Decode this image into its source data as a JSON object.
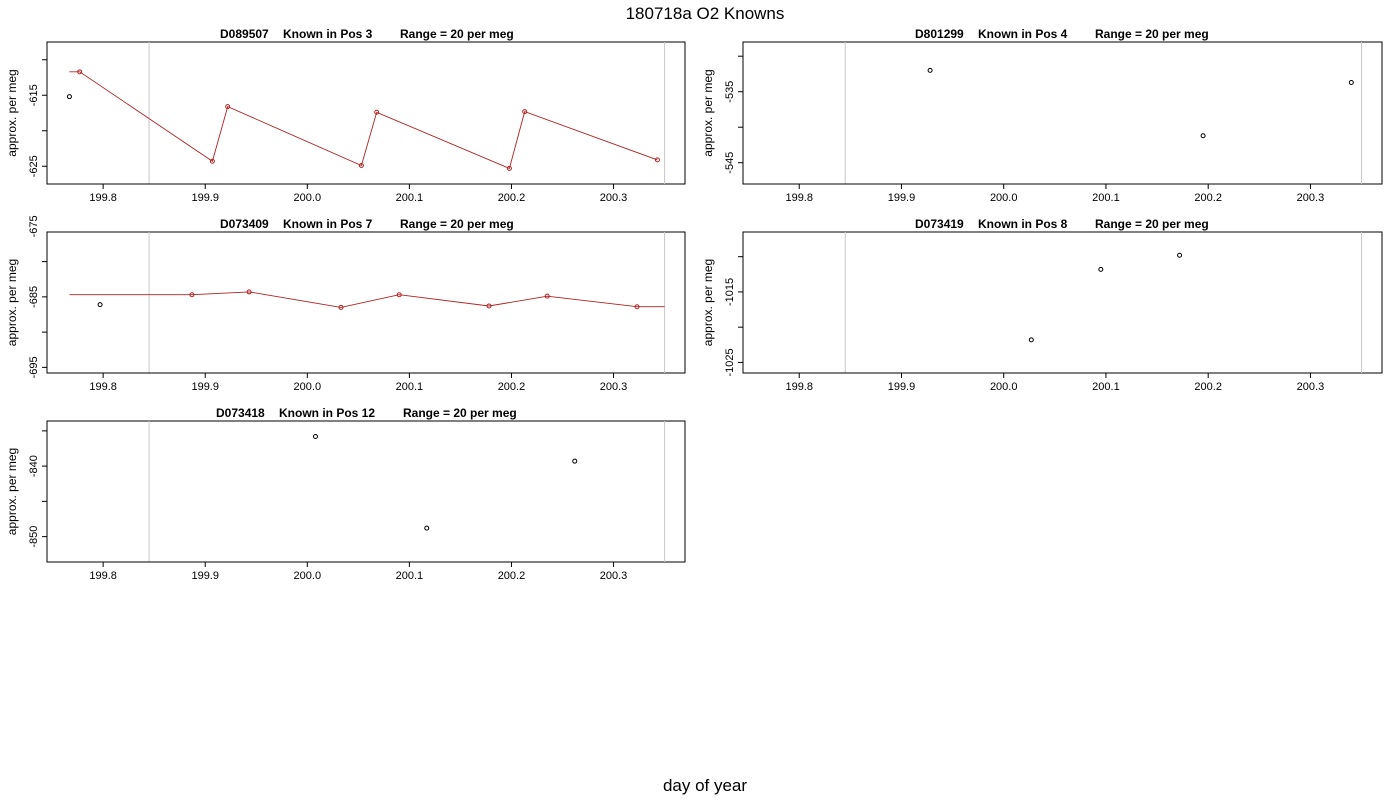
{
  "figure": {
    "title": "180718a   O2 Knowns",
    "xlabel": "day of year"
  },
  "chart_data": [
    {
      "type": "scatter",
      "title_parts": [
        "D089507",
        "Known in Pos 3",
        "Range = 20 per meg"
      ],
      "ylabel": "approx. per meg",
      "xlim": [
        199.745,
        200.37
      ],
      "ylim": [
        -627.5,
        -607.5
      ],
      "x_ticks": [
        "199.8",
        "199.9",
        "200.0",
        "200.1",
        "200.2",
        "200.3"
      ],
      "y_ticks": [
        "-615",
        "-625"
      ],
      "vlines": [
        199.845,
        200.35
      ],
      "fit_line": {
        "x": [
          199.767,
          199.777,
          199.907,
          199.922,
          200.053,
          200.068,
          200.198,
          200.213,
          200.343
        ],
        "y": [
          -611.7,
          -611.7,
          -624.3,
          -616.6,
          -624.9,
          -617.4,
          -625.3,
          -617.3,
          -624.1
        ]
      },
      "points": {
        "x": [
          199.767,
          199.777,
          199.907,
          199.922,
          200.053,
          200.068,
          200.198,
          200.213,
          200.343
        ],
        "y": [
          -615.2,
          -611.7,
          -624.3,
          -616.6,
          -624.9,
          -617.4,
          -625.3,
          -617.3,
          -624.1
        ],
        "color": [
          "#000000",
          "#b22222",
          "#b22222",
          "#b22222",
          "#b22222",
          "#b22222",
          "#b22222",
          "#b22222",
          "#b22222"
        ]
      }
    },
    {
      "type": "scatter",
      "title_parts": [
        "D801299",
        "Known in Pos 4",
        "Range = 20 per meg"
      ],
      "ylabel": "approx. per meg",
      "xlim": [
        199.745,
        200.37
      ],
      "ylim": [
        -548,
        -528
      ],
      "x_ticks": [
        "199.8",
        "199.9",
        "200.0",
        "200.1",
        "200.2",
        "200.3"
      ],
      "y_ticks": [
        "-535",
        "-545"
      ],
      "vlines": [
        199.845,
        200.35
      ],
      "fit_line": null,
      "points": {
        "x": [
          199.928,
          200.195,
          200.34
        ],
        "y": [
          -532.0,
          -541.2,
          -533.7
        ],
        "color": [
          "#000000",
          "#000000",
          "#000000"
        ]
      }
    },
    {
      "type": "scatter",
      "title_parts": [
        "D073409",
        "Known in Pos 7",
        "Range = 20 per meg"
      ],
      "ylabel": "approx. per meg",
      "xlim": [
        199.745,
        200.37
      ],
      "ylim": [
        -695.8,
        -675.8
      ],
      "x_ticks": [
        "199.8",
        "199.9",
        "200.0",
        "200.1",
        "200.2",
        "200.3"
      ],
      "y_ticks": [
        "-675",
        "-685",
        "-695"
      ],
      "vlines": [
        199.845,
        200.35
      ],
      "fit_line": {
        "x": [
          199.767,
          199.887,
          199.943,
          200.033,
          200.09,
          200.178,
          200.235,
          200.323,
          200.35
        ],
        "y": [
          -684.7,
          -684.7,
          -684.3,
          -686.5,
          -684.7,
          -686.3,
          -684.9,
          -686.4,
          -686.4
        ]
      },
      "points": {
        "x": [
          199.797,
          199.887,
          199.943,
          200.033,
          200.09,
          200.178,
          200.235,
          200.323
        ],
        "y": [
          -686.1,
          -684.7,
          -684.3,
          -686.5,
          -684.7,
          -686.3,
          -684.9,
          -686.4
        ],
        "color": [
          "#000000",
          "#b22222",
          "#b22222",
          "#b22222",
          "#b22222",
          "#b22222",
          "#b22222",
          "#b22222"
        ]
      }
    },
    {
      "type": "scatter",
      "title_parts": [
        "D073419",
        "Known in Pos 8",
        "Range = 20 per meg"
      ],
      "ylabel": "approx. per meg",
      "xlim": [
        199.745,
        200.37
      ],
      "ylim": [
        -1026.5,
        -1006.5
      ],
      "x_ticks": [
        "199.8",
        "199.9",
        "200.0",
        "200.1",
        "200.2",
        "200.3"
      ],
      "y_ticks": [
        "-1015",
        "-1025"
      ],
      "vlines": [
        199.845,
        200.35
      ],
      "fit_line": null,
      "points": {
        "x": [
          200.027,
          200.095,
          200.172
        ],
        "y": [
          -1021.8,
          -1011.8,
          -1009.8
        ],
        "color": [
          "#000000",
          "#000000",
          "#000000"
        ]
      }
    },
    {
      "type": "scatter",
      "title_parts": [
        "D073418",
        "Known in Pos 12",
        "Range = 20 per meg"
      ],
      "ylabel": "approx. per meg",
      "xlim": [
        199.745,
        200.37
      ],
      "ylim": [
        -853.6,
        -833.6
      ],
      "x_ticks": [
        "199.8",
        "199.9",
        "200.0",
        "200.1",
        "200.2",
        "200.3"
      ],
      "y_ticks": [
        "-840",
        "-850"
      ],
      "vlines": [
        199.845,
        200.35
      ],
      "fit_line": null,
      "points": {
        "x": [
          200.008,
          200.117,
          200.262
        ],
        "y": [
          -835.8,
          -848.8,
          -839.3
        ],
        "color": [
          "#000000",
          "#000000",
          "#000000"
        ]
      }
    }
  ]
}
